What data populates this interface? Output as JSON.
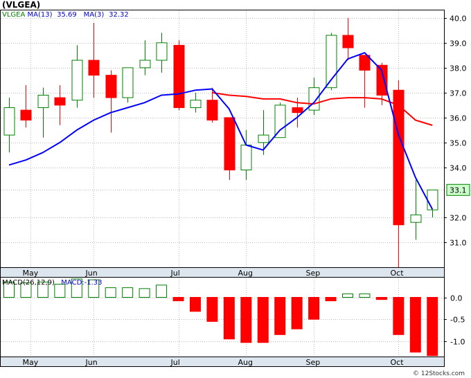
{
  "header": {
    "title": "(VLGEA)",
    "ma_legend": [
      {
        "label": "VLGEA",
        "color": "#008000"
      },
      {
        "label": "MA(13)",
        "color": "#0000cc"
      },
      {
        "label": "35.69",
        "color": "#0000cc"
      },
      {
        "label": "MA(3)",
        "color": "#0000cc"
      },
      {
        "label": "32.32",
        "color": "#0000cc"
      }
    ],
    "macd_legend": [
      {
        "label": "MACD(26,12,9)",
        "color": "#000000"
      },
      {
        "label": "MACD:-1.33",
        "color": "#0000cc"
      }
    ],
    "watermark": "© 12Stocks.com",
    "last_price_label": "33.1"
  },
  "colors": {
    "up": "#008000",
    "down": "#ff0000",
    "ma13": "#ff0000",
    "ma3": "#0000ff",
    "grid": "#bbbbbb",
    "axis_bg": "#dde6ee",
    "label_bg": "#ccffcc"
  },
  "chart_data": [
    {
      "type": "candlestick",
      "ylim": [
        30.0,
        40.3
      ],
      "y_ticks": [
        "40.0",
        "39.0",
        "38.0",
        "37.0",
        "36.0",
        "35.0",
        "34.0",
        "33.1",
        "32.0",
        "31.0"
      ],
      "x_ticks": [
        "May",
        "Jun",
        "Jul",
        "Aug",
        "Sep",
        "Oct"
      ],
      "grid": true,
      "candles": [
        {
          "o": 35.3,
          "h": 36.8,
          "l": 34.6,
          "c": 36.4
        },
        {
          "o": 36.3,
          "h": 37.3,
          "l": 35.6,
          "c": 35.9
        },
        {
          "o": 36.4,
          "h": 37.2,
          "l": 35.2,
          "c": 36.9
        },
        {
          "o": 36.8,
          "h": 37.3,
          "l": 35.7,
          "c": 36.5
        },
        {
          "o": 36.7,
          "h": 38.9,
          "l": 36.4,
          "c": 38.3
        },
        {
          "o": 38.3,
          "h": 39.8,
          "l": 36.8,
          "c": 37.7
        },
        {
          "o": 37.7,
          "h": 37.9,
          "l": 35.4,
          "c": 36.8
        },
        {
          "o": 36.8,
          "h": 38.0,
          "l": 36.6,
          "c": 38.0
        },
        {
          "o": 38.0,
          "h": 39.1,
          "l": 37.7,
          "c": 38.3
        },
        {
          "o": 38.3,
          "h": 39.4,
          "l": 37.8,
          "c": 39.0
        },
        {
          "o": 38.9,
          "h": 39.1,
          "l": 36.3,
          "c": 36.4
        },
        {
          "o": 36.4,
          "h": 37.0,
          "l": 36.2,
          "c": 36.7
        },
        {
          "o": 36.7,
          "h": 37.2,
          "l": 35.8,
          "c": 35.9
        },
        {
          "o": 36.0,
          "h": 36.0,
          "l": 33.5,
          "c": 33.9
        },
        {
          "o": 33.9,
          "h": 35.5,
          "l": 33.5,
          "c": 34.9
        },
        {
          "o": 35.0,
          "h": 36.3,
          "l": 34.5,
          "c": 35.3
        },
        {
          "o": 35.2,
          "h": 36.6,
          "l": 35.2,
          "c": 36.5
        },
        {
          "o": 36.4,
          "h": 36.8,
          "l": 35.6,
          "c": 36.2
        },
        {
          "o": 36.3,
          "h": 37.6,
          "l": 36.1,
          "c": 37.2
        },
        {
          "o": 37.2,
          "h": 39.4,
          "l": 37.1,
          "c": 39.3
        },
        {
          "o": 39.3,
          "h": 40.0,
          "l": 38.3,
          "c": 38.8
        },
        {
          "o": 38.5,
          "h": 38.5,
          "l": 36.4,
          "c": 37.9
        },
        {
          "o": 38.1,
          "h": 38.2,
          "l": 36.5,
          "c": 36.9
        },
        {
          "o": 37.1,
          "h": 37.5,
          "l": 30.0,
          "c": 31.7
        },
        {
          "o": 31.8,
          "h": 33.5,
          "l": 31.1,
          "c": 32.1
        },
        {
          "o": 32.3,
          "h": 33.1,
          "l": 32.0,
          "c": 33.1
        }
      ],
      "series": [
        {
          "name": "MA(13)",
          "values": [
            null,
            null,
            null,
            null,
            null,
            null,
            null,
            null,
            null,
            null,
            null,
            null,
            37.0,
            36.9,
            36.85,
            36.75,
            36.75,
            36.6,
            36.55,
            36.75,
            36.8,
            36.8,
            36.75,
            36.5,
            35.9,
            35.69
          ]
        },
        {
          "name": "MA(3)",
          "values": [
            34.1,
            34.3,
            34.6,
            35.0,
            35.5,
            35.9,
            36.2,
            36.4,
            36.6,
            36.9,
            36.95,
            37.1,
            37.15,
            36.35,
            34.9,
            34.7,
            35.5,
            36.0,
            36.6,
            37.5,
            38.35,
            38.6,
            37.9,
            35.3,
            33.6,
            32.32
          ]
        }
      ]
    },
    {
      "type": "bar",
      "ylim": [
        -1.35,
        0.45
      ],
      "y_ticks": [
        "0.0",
        "-0.5",
        "-1.0"
      ],
      "x_ticks": [
        "May",
        "Jun",
        "Jul",
        "Aug",
        "Sep",
        "Oct"
      ],
      "values": [
        0.35,
        0.33,
        0.35,
        0.3,
        0.42,
        0.4,
        0.22,
        0.22,
        0.2,
        0.28,
        -0.08,
        -0.32,
        -0.55,
        -0.95,
        -1.03,
        -1.03,
        -0.85,
        -0.72,
        -0.5,
        -0.08,
        0.08,
        0.08,
        -0.05,
        -0.85,
        -1.25,
        -1.33
      ]
    }
  ]
}
